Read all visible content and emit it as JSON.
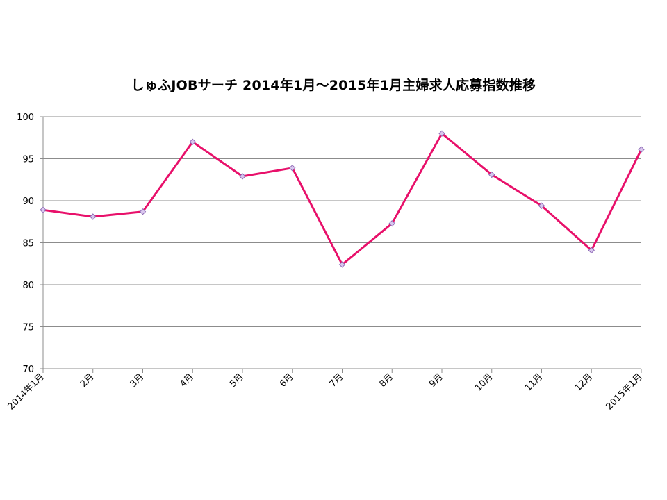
{
  "chart_data": {
    "type": "line",
    "title": "しゅふJOBサーチ  2014年1月～2015年1月主婦求人応募指数推移",
    "xlabel": "",
    "ylabel": "",
    "categories": [
      "2014年1月",
      "2月",
      "3月",
      "4月",
      "5月",
      "6月",
      "7月",
      "8月",
      "9月",
      "10月",
      "11月",
      "12月",
      "2015年1月"
    ],
    "series": [
      {
        "values": [
          88.9,
          88.1,
          88.7,
          97.0,
          92.9,
          93.9,
          82.4,
          87.3,
          98.0,
          93.1,
          89.4,
          84.1,
          96.1
        ]
      }
    ],
    "ylim": [
      70,
      100
    ],
    "yticks": [
      70,
      75,
      80,
      85,
      90,
      95,
      100
    ],
    "grid": true,
    "legend": "none",
    "colors": {
      "line": "#e8106a",
      "marker_fill": "#d9c6ee",
      "marker_stroke": "#8e6bb5",
      "grid": "#8c8c8c",
      "axis": "#8c8c8c"
    }
  }
}
